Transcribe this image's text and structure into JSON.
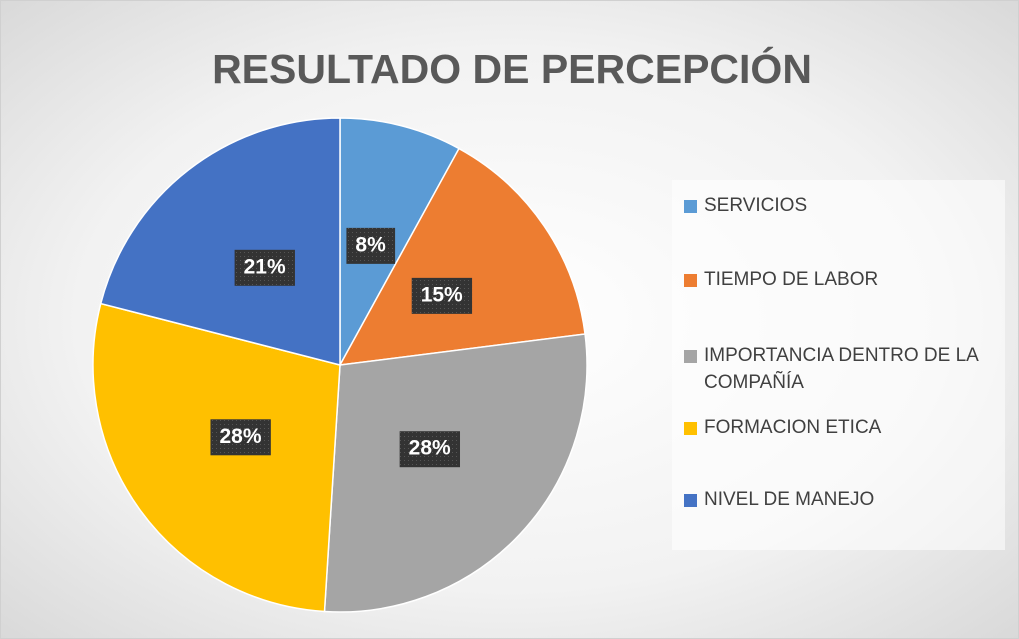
{
  "chart_data": {
    "type": "pie",
    "title": "RESULTADO DE PERCEPCIÓN",
    "categories": [
      "SERVICIOS",
      "TIEMPO DE LABOR",
      "IMPORTANCIA DENTRO DE LA COMPAÑÍA",
      "FORMACION ETICA",
      "NIVEL DE MANEJO"
    ],
    "values": [
      8,
      15,
      28,
      28,
      21
    ],
    "value_labels": [
      "8%",
      "15%",
      "28%",
      "28%",
      "21%"
    ],
    "colors": [
      "#5b9bd5",
      "#ed7d31",
      "#a5a5a5",
      "#ffc000",
      "#4472c4"
    ],
    "legend": "right"
  }
}
